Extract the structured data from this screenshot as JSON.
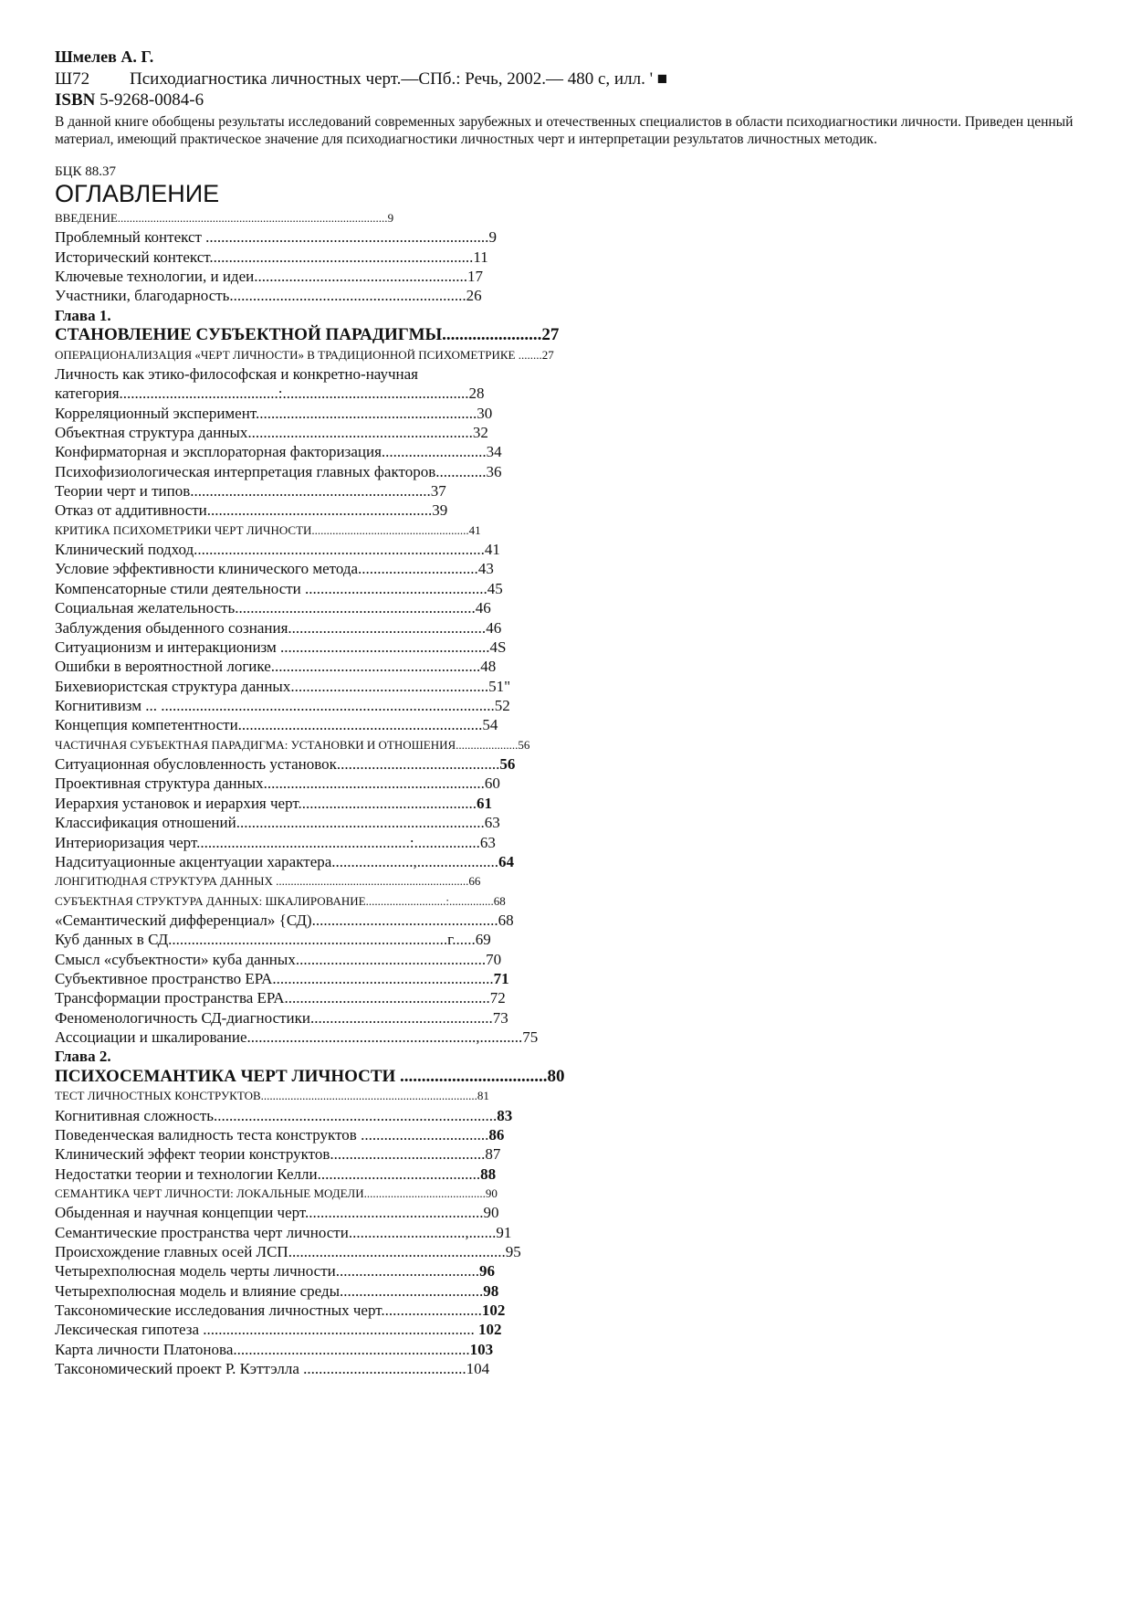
{
  "header": {
    "author": "Шмелев А. Г.",
    "catalog_code": "Ш72",
    "catalog_text": "Психодиагностика личностных черт.—СПб.: Речь, 2002.— 480 с, илл.        '  ■",
    "isbn_label": "ISBN",
    "isbn_value": " 5-9268-0084-6",
    "description": "В данной книге обобщены результаты исследований современных зарубежных и отечественных специалистов в области психодиагностики личности. Приведен ценный материал, имеющий практическое значение для психодиагностики личностных черт и интерпретации результатов личностных методик.",
    "bbk": "БЦК 88.37"
  },
  "toc_title": "ОГЛАВЛЕНИЕ",
  "toc": [
    {
      "label": "ВВЕДЕНИЕ...........................................................................................",
      "page": "9",
      "style": "sc"
    },
    {
      "label": "Проблемный контекст .........................................................................",
      "page": "9"
    },
    {
      "label": "Исторический контекст....................................................................",
      "page": "11"
    },
    {
      "label": "Ключевые технологии, и идеи.......................................................",
      "page": "17"
    },
    {
      "label": "Участники, благодарность.............................................................",
      "page": "26"
    },
    {
      "label": "Глава 1.",
      "page": "",
      "style": "head"
    },
    {
      "label": "СТАНОВЛЕНИЕ СУБЪЕКТНОЙ ПАРАДИГМЫ.......................",
      "page": "27",
      "style": "chap"
    },
    {
      "label": "ОПЕРАЦИОНАЛИЗАЦИЯ  «ЧЕРТ  ЛИЧНОСТИ»  В  ТРАДИЦИОННОЙ ПСИХОМЕТРИКЕ  ........",
      "page": "27",
      "style": "sc"
    },
    {
      "label": "Личность как этико-философская и конкретно-научная",
      "page": ""
    },
    {
      "label": "категория.........................................:................................................",
      "page": "28"
    },
    {
      "label": "Корреляционный эксперимент.........................................................",
      "page": "30"
    },
    {
      "label": "Объектная структура данных..........................................................",
      "page": "32"
    },
    {
      "label": "Конфирматорная и эксплораторная факторизация...........................",
      "page": "34"
    },
    {
      "label": "Психофизиологическая интерпретация главных факторов.............",
      "page": "36"
    },
    {
      "label": "Теории черт и типов..............................................................",
      "page": "37"
    },
    {
      "label": "Отказ от аддитивности..........................................................",
      "page": "39"
    },
    {
      "label": "КРИТИКА ПСИХОМЕТРИКИ ЧЕРТ ЛИЧНОСТИ.....................................................",
      "page": "41",
      "style": "sc"
    },
    {
      "label": "Клинический подход...........................................................................",
      "page": "41"
    },
    {
      "label": "Условие эффективности клинического метода...............................",
      "page": "43"
    },
    {
      "label": "Компенсаторные стили деятельности ...............................................",
      "page": "45"
    },
    {
      "label": "Социальная желательность..............................................................",
      "page": "46"
    },
    {
      "label": "Заблуждения обыденного сознания...................................................",
      "page": "46"
    },
    {
      "label": "Ситуационизм и интеракционизм ......................................................",
      "page": "4S"
    },
    {
      "label": "Ошибки в вероятностной логике......................................................",
      "page": "48"
    },
    {
      "label": "Бихевиористская структура данных...................................................",
      "page": "51\""
    },
    {
      "label": "Когнитивизм ... ......................................................................................",
      "page": "52"
    },
    {
      "label": "Концепция компетентности...............................................................",
      "page": "54"
    },
    {
      "label": "ЧАСТИЧНАЯ СУБЪЕКТНАЯ ПАРАДИГМА: УСТАНОВКИ И ОТНОШЕНИЯ.....................",
      "page": "56",
      "style": "sc"
    },
    {
      "label": "Ситуационная обусловленность установок..........................................",
      "page": "56",
      "bold_page": true
    },
    {
      "label": "Проективная структура данных.........................................................",
      "page": "60"
    },
    {
      "label": "Иерархия установок и иерархия черт..............................................",
      "page": "61",
      "bold_page": true
    },
    {
      "label": "Классификация отношений................................................................",
      "page": "63"
    },
    {
      "label": "Интериоризация черт.......................................................:.................",
      "page": "63"
    },
    {
      "label": "Надситуационные акцентуации характера.....................,.....................",
      "page": "64",
      "bold_page": true
    },
    {
      "label": "ЛОНГИТЮДНАЯ СТРУКТУРА ДАННЫХ .................................................................",
      "page": "66",
      "style": "sc"
    },
    {
      "label": "СУБЪЕКТНАЯ СТРУКТУРА ДАННЫХ: ШКАЛИРОВАНИЕ...........................:...............",
      "page": "68",
      "style": "sc"
    },
    {
      "label": "«Семантический дифференциал» {СД)................................................",
      "page": "68"
    },
    {
      "label": "Куб данных в СД........................................................................г......",
      "page": "69"
    },
    {
      "label": "Смысл «субъектности» куба данных.................................................",
      "page": "70"
    },
    {
      "label": "Субъективное пространство ЕРА.........................................................",
      "page": "71",
      "bold_page": true
    },
    {
      "label": "Трансформации пространства ЕРА.....................................................",
      "page": "72"
    },
    {
      "label": "Феноменологичность СД-диагностики...............................................",
      "page": "73"
    },
    {
      "label": "Ассоциации и шкалирование...........................................................,...........",
      "page": "75"
    },
    {
      "label": "Глава 2.",
      "page": "",
      "style": "head"
    },
    {
      "label": "ПСИХОСЕМАНТИКА ЧЕРТ ЛИЧНОСТИ ..................................",
      "page": "80",
      "style": "chap"
    },
    {
      "label": "ТЕСТ ЛИЧНОСТНЫХ КОНСТРУКТОВ.........................................................................",
      "page": "81",
      "style": "sc"
    },
    {
      "label": "Когнитивная сложность.........................................................................",
      "page": "83",
      "bold_page": true
    },
    {
      "label": "Поведенческая валидность теста конструктов .................................",
      "page": "86",
      "bold_page": true
    },
    {
      "label": "Клинический эффект теории конструктов........................................",
      "page": "87"
    },
    {
      "label": "Недостатки теории и технологии Келли..........................................",
      "page": "88",
      "bold_page": true
    },
    {
      "label": "СЕМАНТИКА ЧЕРТ ЛИЧНОСТИ: ЛОКАЛЬНЫЕ МОДЕЛИ.........................................",
      "page": "90",
      "style": "sc"
    },
    {
      "label": "Обыденная и научная концепции черт..............................................",
      "page": "90"
    },
    {
      "label": "Семантические пространства черт личности..............................,.......",
      "page": "91"
    },
    {
      "label": "Происхождение главных осей ЛСП........................................................",
      "page": "95"
    },
    {
      "label": "Четырехполюсная модель черты личности.....................................",
      "page": "96",
      "bold_page": true
    },
    {
      "label": "Четырехполюсная модель и влияние среды.....................................",
      "page": "98",
      "bold_page": true
    },
    {
      "label": "Таксономические исследования личностных черт..........................",
      "page": "102",
      "bold_page": true
    },
    {
      "label": "Лексическая гипотеза ...................................................................... ",
      "page": "102",
      "bold_page": true
    },
    {
      "label": "Карта личности Платонова.............................................................",
      "page": "103",
      "bold_page": true
    },
    {
      "label": "Таксономический проект Р. Кэттэлла ..........................................",
      "page": "104"
    }
  ]
}
